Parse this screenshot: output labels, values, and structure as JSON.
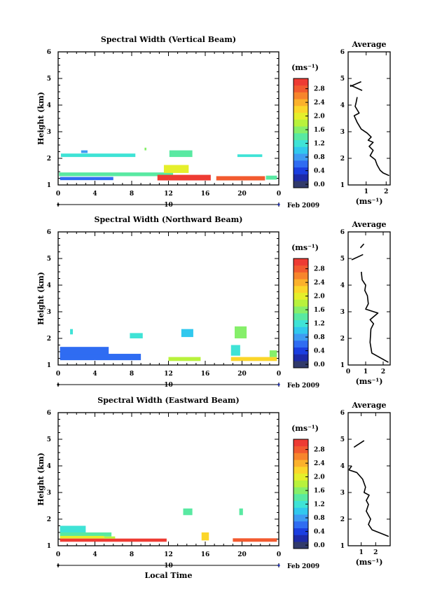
{
  "figure": {
    "xlabel_bottom": "Local Time",
    "date_text": "Feb 2009",
    "day_label": "10"
  },
  "colorbar": {
    "unit": "(ms⁻¹)",
    "ticks": [
      "0.0",
      "0.4",
      "0.8",
      "1.2",
      "1.6",
      "2.0",
      "2.4",
      "2.8"
    ],
    "colors": [
      "#313a6b",
      "#1d2aa8",
      "#1b3ee0",
      "#2f6cf2",
      "#3e9bf2",
      "#31c8ee",
      "#3fe3d6",
      "#59e9a2",
      "#86ef6a",
      "#b8f23c",
      "#e5ef2b",
      "#fbd62a",
      "#fbb12b",
      "#f7852c",
      "#f25a2f",
      "#ee3b33"
    ]
  },
  "chart_data": [
    {
      "type": "heatmap",
      "title": "Spectral Width (Vertical Beam)",
      "xlabel": "",
      "ylabel": "Height (km)",
      "xlim": [
        0,
        24
      ],
      "ylim": [
        1,
        6
      ],
      "xticks": [
        "0",
        "4",
        "8",
        "12",
        "16",
        "20",
        "0"
      ],
      "yticks": [
        "1",
        "2",
        "3",
        "4",
        "5",
        "6"
      ],
      "colorbar_unit": "(ms⁻¹)",
      "colorbar_range": [
        0,
        2.9
      ],
      "regions": [
        {
          "x": [
            0.3,
            8.4
          ],
          "y": [
            2.05,
            2.18
          ],
          "value": 1.1
        },
        {
          "x": [
            2.5,
            3.2
          ],
          "y": [
            2.2,
            2.3
          ],
          "value": 0.9
        },
        {
          "x": [
            9.4,
            9.6
          ],
          "y": [
            2.3,
            2.4
          ],
          "value": 1.6
        },
        {
          "x": [
            12.1,
            14.6
          ],
          "y": [
            2.05,
            2.3
          ],
          "value": 1.4
        },
        {
          "x": [
            19.5,
            22.2
          ],
          "y": [
            2.05,
            2.15
          ],
          "value": 1.2
        },
        {
          "x": [
            0.1,
            12.5
          ],
          "y": [
            1.33,
            1.47
          ],
          "value": 1.3
        },
        {
          "x": [
            0.2,
            6.0
          ],
          "y": [
            1.18,
            1.3
          ],
          "value": 0.6
        },
        {
          "x": [
            11.5,
            14.2
          ],
          "y": [
            1.45,
            1.75
          ],
          "value": 1.9
        },
        {
          "x": [
            10.8,
            16.6
          ],
          "y": [
            1.17,
            1.38
          ],
          "value": 2.8
        },
        {
          "x": [
            17.2,
            22.5
          ],
          "y": [
            1.17,
            1.33
          ],
          "value": 2.7
        },
        {
          "x": [
            22.6,
            23.8
          ],
          "y": [
            1.2,
            1.35
          ],
          "value": 1.3
        }
      ]
    },
    {
      "type": "line",
      "title": "Average",
      "xlabel": "(ms⁻¹)",
      "ylabel": "",
      "xlim": [
        0.1,
        2.2
      ],
      "ylim": [
        1,
        6
      ],
      "xticks": [
        "1",
        "2"
      ],
      "yticks": [
        "1",
        "2",
        "3",
        "4",
        "5",
        "6"
      ],
      "segments": [
        [
          [
            0.2,
            4.7
          ],
          [
            0.75,
            4.88
          ]
        ],
        [
          [
            0.2,
            4.75
          ],
          [
            0.8,
            4.55
          ]
        ],
        [
          [
            0.55,
            4.3
          ],
          [
            0.5,
            4.1
          ],
          [
            0.45,
            3.95
          ],
          [
            0.65,
            3.7
          ],
          [
            0.4,
            3.6
          ],
          [
            0.55,
            3.35
          ],
          [
            0.75,
            3.1
          ],
          [
            1.05,
            2.95
          ],
          [
            1.25,
            2.8
          ],
          [
            1.1,
            2.68
          ],
          [
            1.35,
            2.6
          ],
          [
            1.15,
            2.45
          ],
          [
            1.35,
            2.3
          ],
          [
            1.2,
            2.1
          ],
          [
            1.45,
            1.95
          ],
          [
            1.55,
            1.75
          ],
          [
            1.7,
            1.55
          ],
          [
            1.85,
            1.45
          ],
          [
            2.15,
            1.35
          ]
        ]
      ]
    },
    {
      "type": "heatmap",
      "title": "Spectral Width (Northward Beam)",
      "xlabel": "",
      "ylabel": "Height (km)",
      "xlim": [
        0,
        24
      ],
      "ylim": [
        1,
        6
      ],
      "xticks": [
        "0",
        "4",
        "8",
        "12",
        "16",
        "20",
        "0"
      ],
      "yticks": [
        "1",
        "2",
        "3",
        "4",
        "5",
        "6"
      ],
      "colorbar_unit": "(ms⁻¹)",
      "colorbar_range": [
        0,
        3.0
      ],
      "regions": [
        {
          "x": [
            0.2,
            5.5
          ],
          "y": [
            1.4,
            1.68
          ],
          "value": 0.7
        },
        {
          "x": [
            0.2,
            9.0
          ],
          "y": [
            1.18,
            1.42
          ],
          "value": 0.6
        },
        {
          "x": [
            1.3,
            1.6
          ],
          "y": [
            2.15,
            2.35
          ],
          "value": 1.3
        },
        {
          "x": [
            7.8,
            9.2
          ],
          "y": [
            2.0,
            2.2
          ],
          "value": 1.2
        },
        {
          "x": [
            13.4,
            14.7
          ],
          "y": [
            2.05,
            2.35
          ],
          "value": 1.1
        },
        {
          "x": [
            12.0,
            15.5
          ],
          "y": [
            1.15,
            1.3
          ],
          "value": 1.8
        },
        {
          "x": [
            19.2,
            20.5
          ],
          "y": [
            2.0,
            2.45
          ],
          "value": 1.5
        },
        {
          "x": [
            18.8,
            23.8
          ],
          "y": [
            1.15,
            1.3
          ],
          "value": 2.2
        },
        {
          "x": [
            18.8,
            19.8
          ],
          "y": [
            1.35,
            1.75
          ],
          "value": 1.2
        },
        {
          "x": [
            23.0,
            23.8
          ],
          "y": [
            1.3,
            1.55
          ],
          "value": 1.6
        }
      ]
    },
    {
      "type": "line",
      "title": "Average",
      "xlabel": "(ms⁻¹)",
      "ylabel": "",
      "xlim": [
        0,
        2.4
      ],
      "ylim": [
        1,
        6
      ],
      "xticks": [
        "0",
        "1",
        "2"
      ],
      "yticks": [
        "1",
        "2",
        "3",
        "4",
        "5",
        "6"
      ],
      "segments": [
        [
          [
            0.7,
            5.4
          ],
          [
            0.9,
            5.55
          ]
        ],
        [
          [
            0.2,
            4.95
          ],
          [
            0.85,
            5.15
          ]
        ],
        [
          [
            0.75,
            4.5
          ],
          [
            0.8,
            4.2
          ],
          [
            1.0,
            4.0
          ],
          [
            0.95,
            3.8
          ],
          [
            1.1,
            3.6
          ],
          [
            1.15,
            3.3
          ],
          [
            1.0,
            3.1
          ],
          [
            1.7,
            2.95
          ],
          [
            1.25,
            2.7
          ],
          [
            1.45,
            2.55
          ],
          [
            1.3,
            2.35
          ],
          [
            1.25,
            1.85
          ],
          [
            1.35,
            1.45
          ],
          [
            2.3,
            1.1
          ]
        ]
      ]
    },
    {
      "type": "heatmap",
      "title": "Spectral Width (Eastward Beam)",
      "xlabel": "Local Time",
      "ylabel": "Height (km)",
      "xlim": [
        0,
        24
      ],
      "ylim": [
        1,
        6
      ],
      "xticks": [
        "0",
        "4",
        "8",
        "12",
        "16",
        "20",
        "0"
      ],
      "yticks": [
        "1",
        "2",
        "3",
        "4",
        "5",
        "6"
      ],
      "colorbar_unit": "(ms⁻¹)",
      "colorbar_range": [
        0,
        2.9
      ],
      "regions": [
        {
          "x": [
            0.2,
            3.0
          ],
          "y": [
            1.5,
            1.75
          ],
          "value": 1.2
        },
        {
          "x": [
            0.2,
            5.8
          ],
          "y": [
            1.35,
            1.5
          ],
          "value": 1.4
        },
        {
          "x": [
            0.2,
            5.0
          ],
          "y": [
            1.27,
            1.37
          ],
          "value": 1.9
        },
        {
          "x": [
            0.2,
            11.8
          ],
          "y": [
            1.15,
            1.27
          ],
          "value": 2.8
        },
        {
          "x": [
            5.0,
            6.2
          ],
          "y": [
            1.27,
            1.35
          ],
          "value": 1.8
        },
        {
          "x": [
            13.6,
            14.6
          ],
          "y": [
            2.15,
            2.4
          ],
          "value": 1.3
        },
        {
          "x": [
            15.6,
            16.4
          ],
          "y": [
            1.2,
            1.5
          ],
          "value": 2.0
        },
        {
          "x": [
            19.7,
            20.1
          ],
          "y": [
            2.15,
            2.4
          ],
          "value": 1.3
        },
        {
          "x": [
            19.0,
            23.8
          ],
          "y": [
            1.15,
            1.28
          ],
          "value": 2.6
        }
      ]
    },
    {
      "type": "line",
      "title": "Average",
      "xlabel": "(ms⁻¹)",
      "ylabel": "",
      "xlim": [
        0.1,
        3.0
      ],
      "ylim": [
        1,
        6
      ],
      "xticks": [
        "1",
        "2"
      ],
      "yticks": [
        "1",
        "2",
        "3",
        "4",
        "5",
        "6"
      ],
      "segments": [
        [
          [
            0.5,
            4.7
          ],
          [
            1.2,
            4.95
          ]
        ],
        [
          [
            0.15,
            3.85
          ],
          [
            0.35,
            4.0
          ]
        ],
        [
          [
            0.15,
            3.85
          ],
          [
            0.7,
            3.75
          ],
          [
            1.1,
            3.5
          ],
          [
            1.3,
            3.2
          ],
          [
            1.2,
            3.0
          ],
          [
            1.55,
            2.9
          ],
          [
            1.35,
            2.7
          ],
          [
            1.5,
            2.55
          ],
          [
            1.35,
            2.3
          ],
          [
            1.65,
            2.0
          ],
          [
            1.5,
            1.8
          ],
          [
            1.75,
            1.6
          ],
          [
            2.9,
            1.35
          ]
        ]
      ]
    }
  ]
}
